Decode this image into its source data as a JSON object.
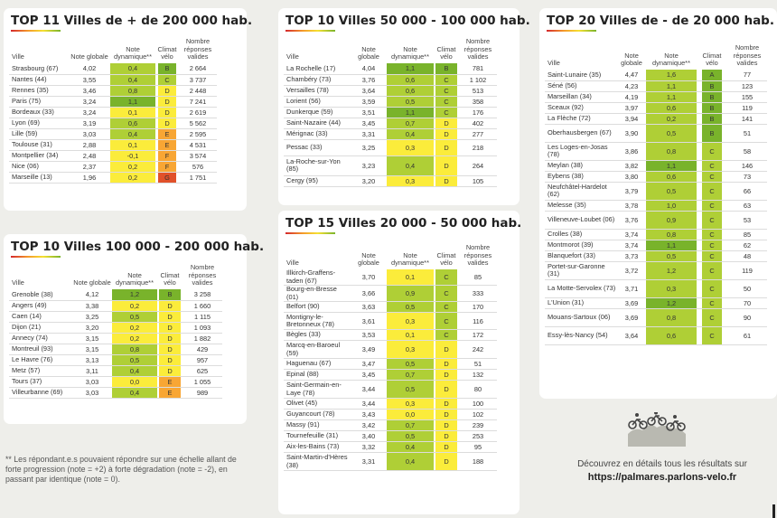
{
  "colors": {
    "dark_green": "#79b32b",
    "light_green": "#afcf36",
    "yellow": "#fbec3b",
    "orange": "#f8a634",
    "red": "#e1512a"
  },
  "footnote": "** Les répondant.e.s pouvaient répondre sur une échelle allant de forte progression (note = +2) à forte dégradation (note = -2), en passant par identique (note = 0).",
  "promo": {
    "line1": "Découvrez en détails tous les résultats sur",
    "url": "https://palmares.parlons-velo.fr"
  },
  "tables": [
    {
      "title": "TOP 11 Villes de + de 200 000 hab.",
      "headers": {
        "ville": "Ville",
        "note": "Note globale",
        "dyn": "Note dynamique**",
        "climat": "Climat vélo",
        "rep": "Nombre réponses valides"
      },
      "rows": [
        {
          "ville": "Strasbourg (67)",
          "note": "4,02",
          "dyn": "0,4",
          "dc": "light_green",
          "climat": "B",
          "cc": "dark_green",
          "rep": "2 664"
        },
        {
          "ville": "Nantes (44)",
          "note": "3,55",
          "dyn": "0,4",
          "dc": "light_green",
          "climat": "C",
          "cc": "light_green",
          "rep": "3 737"
        },
        {
          "ville": "Rennes (35)",
          "note": "3,46",
          "dyn": "0,8",
          "dc": "light_green",
          "climat": "D",
          "cc": "yellow",
          "rep": "2 448"
        },
        {
          "ville": "Paris (75)",
          "note": "3,24",
          "dyn": "1,1",
          "dc": "dark_green",
          "climat": "D",
          "cc": "yellow",
          "rep": "7 241"
        },
        {
          "ville": "Bordeaux (33)",
          "note": "3,24",
          "dyn": "0,1",
          "dc": "yellow",
          "climat": "D",
          "cc": "yellow",
          "rep": "2 619"
        },
        {
          "ville": "Lyon (69)",
          "note": "3,19",
          "dyn": "0,6",
          "dc": "light_green",
          "climat": "D",
          "cc": "yellow",
          "rep": "5 562"
        },
        {
          "ville": "Lille (59)",
          "note": "3,03",
          "dyn": "0,4",
          "dc": "light_green",
          "climat": "E",
          "cc": "orange",
          "rep": "2 595"
        },
        {
          "ville": "Toulouse (31)",
          "note": "2,88",
          "dyn": "0,1",
          "dc": "yellow",
          "climat": "E",
          "cc": "orange",
          "rep": "4 531"
        },
        {
          "ville": "Montpellier (34)",
          "note": "2,48",
          "dyn": "-0,1",
          "dc": "yellow",
          "climat": "F",
          "cc": "orange",
          "rep": "3 574"
        },
        {
          "ville": "Nice (06)",
          "note": "2,37",
          "dyn": "0,2",
          "dc": "yellow",
          "climat": "F",
          "cc": "orange",
          "rep": "576"
        },
        {
          "ville": "Marseille (13)",
          "note": "1,96",
          "dyn": "0,2",
          "dc": "yellow",
          "climat": "G",
          "cc": "red",
          "rep": "1 751"
        }
      ]
    },
    {
      "title": "TOP 10 Villes 100 000 - 200 000 hab.",
      "headers": {
        "ville": "Ville",
        "note": "Note globale",
        "dyn": "Note dynamique**",
        "climat": "Climat vélo",
        "rep": "Nombre réponses valides"
      },
      "rows": [
        {
          "ville": "Grenoble (38)",
          "note": "4,12",
          "dyn": "1,2",
          "dc": "dark_green",
          "climat": "B",
          "cc": "dark_green",
          "rep": "3 258"
        },
        {
          "ville": "Angers (49)",
          "note": "3,38",
          "dyn": "0,2",
          "dc": "yellow",
          "climat": "D",
          "cc": "yellow",
          "rep": "1 660"
        },
        {
          "ville": "Caen (14)",
          "note": "3,25",
          "dyn": "0,5",
          "dc": "light_green",
          "climat": "D",
          "cc": "yellow",
          "rep": "1 115"
        },
        {
          "ville": "Dijon (21)",
          "note": "3,20",
          "dyn": "0,2",
          "dc": "yellow",
          "climat": "D",
          "cc": "yellow",
          "rep": "1 093"
        },
        {
          "ville": "Annecy (74)",
          "note": "3,15",
          "dyn": "0,2",
          "dc": "yellow",
          "climat": "D",
          "cc": "yellow",
          "rep": "1 882"
        },
        {
          "ville": "Montreuil (93)",
          "note": "3,15",
          "dyn": "0,8",
          "dc": "light_green",
          "climat": "D",
          "cc": "yellow",
          "rep": "429"
        },
        {
          "ville": "Le Havre (76)",
          "note": "3,13",
          "dyn": "0,5",
          "dc": "light_green",
          "climat": "D",
          "cc": "yellow",
          "rep": "957"
        },
        {
          "ville": "Metz (57)",
          "note": "3,11",
          "dyn": "0,4",
          "dc": "light_green",
          "climat": "D",
          "cc": "yellow",
          "rep": "625"
        },
        {
          "ville": "Tours (37)",
          "note": "3,03",
          "dyn": "0,0",
          "dc": "yellow",
          "climat": "E",
          "cc": "orange",
          "rep": "1 055"
        },
        {
          "ville": "Villeurbanne (69)",
          "note": "3,03",
          "dyn": "0,4",
          "dc": "light_green",
          "climat": "E",
          "cc": "orange",
          "rep": "989"
        }
      ]
    },
    {
      "title": "TOP 10 Villes 50 000 - 100 000 hab.",
      "headers": {
        "ville": "Ville",
        "note": "Note globale",
        "dyn": "Note dynamique**",
        "climat": "Climat vélo",
        "rep": "Nombre réponses valides"
      },
      "rows": [
        {
          "ville": "La Rochelle (17)",
          "note": "4,04",
          "dyn": "1,1",
          "dc": "dark_green",
          "climat": "B",
          "cc": "dark_green",
          "rep": "781"
        },
        {
          "ville": "Chambéry (73)",
          "note": "3,76",
          "dyn": "0,6",
          "dc": "light_green",
          "climat": "C",
          "cc": "light_green",
          "rep": "1 102"
        },
        {
          "ville": "Versailles (78)",
          "note": "3,64",
          "dyn": "0,6",
          "dc": "light_green",
          "climat": "C",
          "cc": "light_green",
          "rep": "513"
        },
        {
          "ville": "Lorient (56)",
          "note": "3,59",
          "dyn": "0,5",
          "dc": "light_green",
          "climat": "C",
          "cc": "light_green",
          "rep": "358"
        },
        {
          "ville": "Dunkerque (59)",
          "note": "3,51",
          "dyn": "1,1",
          "dc": "dark_green",
          "climat": "C",
          "cc": "light_green",
          "rep": "176"
        },
        {
          "ville": "Saint-Nazaire (44)",
          "note": "3,45",
          "dyn": "0,7",
          "dc": "light_green",
          "climat": "D",
          "cc": "yellow",
          "rep": "402"
        },
        {
          "ville": "Mérignac (33)",
          "note": "3,31",
          "dyn": "0,4",
          "dc": "light_green",
          "climat": "D",
          "cc": "yellow",
          "rep": "277"
        },
        {
          "ville": "Pessac (33)",
          "note": "3,25",
          "dyn": "0,3",
          "dc": "yellow",
          "climat": "D",
          "cc": "yellow",
          "rep": "218"
        },
        {
          "ville": "La-Roche-sur-Yon (85)",
          "note": "3,23",
          "dyn": "0,4",
          "dc": "light_green",
          "climat": "D",
          "cc": "yellow",
          "rep": "264"
        },
        {
          "ville": "Cergy (95)",
          "note": "3,20",
          "dyn": "0,3",
          "dc": "yellow",
          "climat": "D",
          "cc": "yellow",
          "rep": "105"
        }
      ]
    },
    {
      "title": "TOP 15 Villes 20 000 - 50 000 hab.",
      "headers": {
        "ville": "Ville",
        "note": "Note globale",
        "dyn": "Note dynamique**",
        "climat": "Climat vélo",
        "rep": "Nombre réponses valides"
      },
      "rows": [
        {
          "ville": "Illkirch-Graffens-taden (67)",
          "note": "3,70",
          "dyn": "0,1",
          "dc": "yellow",
          "climat": "C",
          "cc": "light_green",
          "rep": "85"
        },
        {
          "ville": "Bourg-en-Bresse (01)",
          "note": "3,66",
          "dyn": "0,9",
          "dc": "light_green",
          "climat": "C",
          "cc": "light_green",
          "rep": "333"
        },
        {
          "ville": "Belfort (90)",
          "note": "3,63",
          "dyn": "0,5",
          "dc": "light_green",
          "climat": "C",
          "cc": "light_green",
          "rep": "170"
        },
        {
          "ville": "Montigny-le-Bretonneux (78)",
          "note": "3,61",
          "dyn": "0,3",
          "dc": "yellow",
          "climat": "C",
          "cc": "light_green",
          "rep": "116"
        },
        {
          "ville": "Bègles (33)",
          "note": "3,53",
          "dyn": "0,1",
          "dc": "yellow",
          "climat": "C",
          "cc": "light_green",
          "rep": "172"
        },
        {
          "ville": "Marcq-en-Baroeul (59)",
          "note": "3,49",
          "dyn": "0,3",
          "dc": "yellow",
          "climat": "D",
          "cc": "yellow",
          "rep": "242"
        },
        {
          "ville": "Haguenau (67)",
          "note": "3,47",
          "dyn": "0,5",
          "dc": "light_green",
          "climat": "D",
          "cc": "yellow",
          "rep": "51"
        },
        {
          "ville": "Epinal (88)",
          "note": "3,45",
          "dyn": "0,7",
          "dc": "light_green",
          "climat": "D",
          "cc": "yellow",
          "rep": "132"
        },
        {
          "ville": "Saint-Germain-en-Laye (78)",
          "note": "3,44",
          "dyn": "0,5",
          "dc": "light_green",
          "climat": "D",
          "cc": "yellow",
          "rep": "80"
        },
        {
          "ville": "Olivet (45)",
          "note": "3,44",
          "dyn": "0,3",
          "dc": "yellow",
          "climat": "D",
          "cc": "yellow",
          "rep": "100"
        },
        {
          "ville": "Guyancourt (78)",
          "note": "3,43",
          "dyn": "0,0",
          "dc": "yellow",
          "climat": "D",
          "cc": "yellow",
          "rep": "102"
        },
        {
          "ville": "Massy (91)",
          "note": "3,42",
          "dyn": "0,7",
          "dc": "light_green",
          "climat": "D",
          "cc": "yellow",
          "rep": "239"
        },
        {
          "ville": "Tournefeuille (31)",
          "note": "3,40",
          "dyn": "0,5",
          "dc": "light_green",
          "climat": "D",
          "cc": "yellow",
          "rep": "253"
        },
        {
          "ville": "Aix-les-Bains (73)",
          "note": "3,32",
          "dyn": "0,4",
          "dc": "light_green",
          "climat": "D",
          "cc": "yellow",
          "rep": "95"
        },
        {
          "ville": "Saint-Martin-d'Hères (38)",
          "note": "3,31",
          "dyn": "0,4",
          "dc": "light_green",
          "climat": "D",
          "cc": "yellow",
          "rep": "188"
        }
      ]
    },
    {
      "title": "TOP 20 Villes de - de 20 000 hab.",
      "headers": {
        "ville": "Ville",
        "note": "Note globale",
        "dyn": "Note dynamique**",
        "climat": "Climat vélo",
        "rep": "Nombre réponses valides"
      },
      "rows": [
        {
          "ville": "Saint-Lunaire (35)",
          "note": "4,47",
          "dyn": "1,6",
          "dc": "light_green",
          "climat": "A",
          "cc": "dark_green",
          "rep": "77"
        },
        {
          "ville": "Séné (56)",
          "note": "4,23",
          "dyn": "1,1",
          "dc": "light_green",
          "climat": "B",
          "cc": "dark_green",
          "rep": "123"
        },
        {
          "ville": "Marseillan (34)",
          "note": "4,19",
          "dyn": "1,1",
          "dc": "light_green",
          "climat": "B",
          "cc": "dark_green",
          "rep": "155"
        },
        {
          "ville": "Sceaux (92)",
          "note": "3,97",
          "dyn": "0,6",
          "dc": "light_green",
          "climat": "B",
          "cc": "dark_green",
          "rep": "119"
        },
        {
          "ville": "La Flèche (72)",
          "note": "3,94",
          "dyn": "0,2",
          "dc": "light_green",
          "climat": "B",
          "cc": "dark_green",
          "rep": "141"
        },
        {
          "ville": "Oberhausbergen (67)",
          "note": "3,90",
          "dyn": "0,5",
          "dc": "light_green",
          "climat": "B",
          "cc": "dark_green",
          "rep": "51"
        },
        {
          "ville": "Les Loges-en-Josas (78)",
          "note": "3,86",
          "dyn": "0,8",
          "dc": "light_green",
          "climat": "C",
          "cc": "light_green",
          "rep": "58"
        },
        {
          "ville": "Meylan (38)",
          "note": "3,82",
          "dyn": "1,1",
          "dc": "dark_green",
          "climat": "C",
          "cc": "light_green",
          "rep": "146"
        },
        {
          "ville": "Eybens (38)",
          "note": "3,80",
          "dyn": "0,6",
          "dc": "light_green",
          "climat": "C",
          "cc": "light_green",
          "rep": "73"
        },
        {
          "ville": "Neufchâtel-Hardelot (62)",
          "note": "3,79",
          "dyn": "0,5",
          "dc": "light_green",
          "climat": "C",
          "cc": "light_green",
          "rep": "66"
        },
        {
          "ville": "Melesse (35)",
          "note": "3,78",
          "dyn": "1,0",
          "dc": "light_green",
          "climat": "C",
          "cc": "light_green",
          "rep": "63"
        },
        {
          "ville": "Villeneuve-Loubet (06)",
          "note": "3,76",
          "dyn": "0,9",
          "dc": "light_green",
          "climat": "C",
          "cc": "light_green",
          "rep": "53"
        },
        {
          "ville": "Crolles (38)",
          "note": "3,74",
          "dyn": "0,8",
          "dc": "light_green",
          "climat": "C",
          "cc": "light_green",
          "rep": "85"
        },
        {
          "ville": "Montmorot (39)",
          "note": "3,74",
          "dyn": "1,1",
          "dc": "dark_green",
          "climat": "C",
          "cc": "light_green",
          "rep": "62"
        },
        {
          "ville": "Blanquefort (33)",
          "note": "3,73",
          "dyn": "0,5",
          "dc": "light_green",
          "climat": "C",
          "cc": "light_green",
          "rep": "48"
        },
        {
          "ville": "Portet-sur-Garonne (31)",
          "note": "3,72",
          "dyn": "1,2",
          "dc": "light_green",
          "climat": "C",
          "cc": "light_green",
          "rep": "119"
        },
        {
          "ville": "La Motte-Servolex (73)",
          "note": "3,71",
          "dyn": "0,3",
          "dc": "light_green",
          "climat": "C",
          "cc": "light_green",
          "rep": "50"
        },
        {
          "ville": "L'Union (31)",
          "note": "3,69",
          "dyn": "1,2",
          "dc": "dark_green",
          "climat": "C",
          "cc": "light_green",
          "rep": "70"
        },
        {
          "ville": "Mouans-Sartoux (06)",
          "note": "3,69",
          "dyn": "0,8",
          "dc": "light_green",
          "climat": "C",
          "cc": "light_green",
          "rep": "90"
        },
        {
          "ville": "Essy-lès-Nancy (54)",
          "note": "3,64",
          "dyn": "0,6",
          "dc": "light_green",
          "climat": "C",
          "cc": "light_green",
          "rep": "61"
        }
      ]
    }
  ]
}
